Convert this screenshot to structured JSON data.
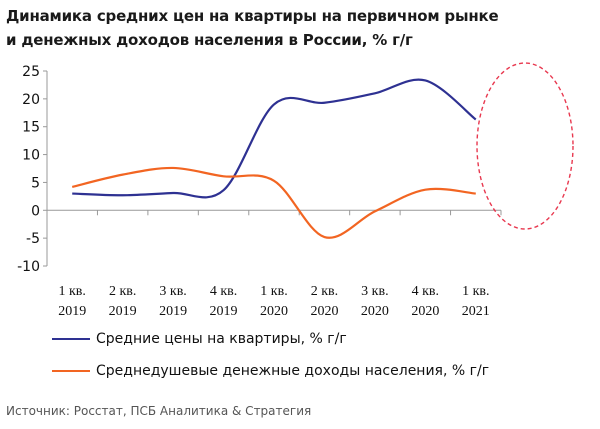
{
  "title_line1": "Динамика средних цен на квартиры на первичном рынке",
  "title_line2": "и денежных доходов населения в России, % г/г",
  "chart_data": {
    "type": "line",
    "title": "Динамика средних цен на квартиры на первичном рынке и денежных доходов населения в России, % г/г",
    "categories": [
      [
        "1 кв.",
        "2019"
      ],
      [
        "2 кв.",
        "2019"
      ],
      [
        "3 кв.",
        "2019"
      ],
      [
        "4 кв.",
        "2019"
      ],
      [
        "1 кв.",
        "2020"
      ],
      [
        "2 кв.",
        "2020"
      ],
      [
        "3 кв.",
        "2020"
      ],
      [
        "4 кв.",
        "2020"
      ],
      [
        "1 кв.",
        "2021"
      ]
    ],
    "ylim": [
      -10,
      25
    ],
    "yticks": [
      "25",
      "20",
      "15",
      "10",
      "5",
      "0",
      "-5",
      "-10"
    ],
    "ytick_values": [
      25,
      20,
      15,
      10,
      5,
      0,
      -5,
      -10
    ],
    "legend_position": "bottom",
    "series": [
      {
        "name": "Средние цены на квартиры, % г/г",
        "color": "#2e3192",
        "values": [
          3.0,
          2.7,
          3.1,
          3.6,
          19.0,
          19.3,
          21.0,
          23.3,
          16.3
        ]
      },
      {
        "name": "Среднедушевые денежные доходы населения, % г/г",
        "color": "#f26522",
        "values": [
          4.2,
          6.4,
          7.6,
          6.1,
          5.3,
          -4.8,
          -0.2,
          3.7,
          3.0
        ]
      }
    ],
    "annotation": {
      "type": "dashed-ellipse",
      "color": "#e8384f",
      "highlights": [
        "4 кв. 2020",
        "1 кв. 2021"
      ]
    }
  },
  "source": "Источник: Росстат, ПСБ Аналитика & Стратегия"
}
